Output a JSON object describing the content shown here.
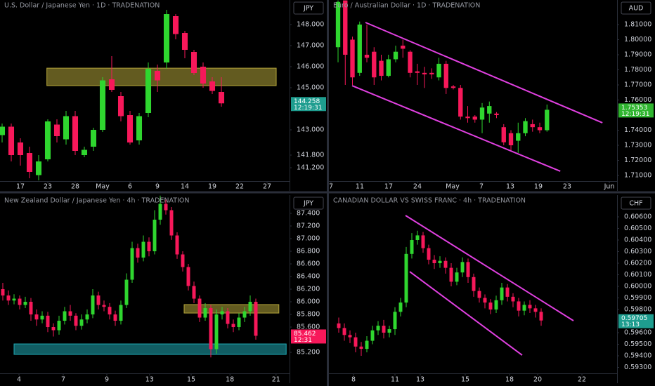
{
  "chart_data": [
    {
      "type": "candlestick",
      "title": "U.S. Dollar / Japanese Yen · 1D · TRADENATION",
      "currency": "JPY",
      "up_color": "#2fd62f",
      "down_color": "#f7185a",
      "xlim": [
        -0.23,
        31.46
      ],
      "ylim": [
        140.567,
        149.167
      ],
      "xticks": [
        {
          "value": 2,
          "label": "17"
        },
        {
          "value": 5,
          "label": "23"
        },
        {
          "value": 8,
          "label": "28"
        },
        {
          "value": 11,
          "label": "May"
        },
        {
          "value": 14,
          "label": "6"
        },
        {
          "value": 17,
          "label": "9"
        },
        {
          "value": 20,
          "label": "14"
        },
        {
          "value": 23,
          "label": "19"
        },
        {
          "value": 26,
          "label": "22"
        },
        {
          "value": 29,
          "label": "27"
        }
      ],
      "yticks": [
        {
          "value": 148,
          "label": "148.000"
        },
        {
          "value": 147,
          "label": "147.000"
        },
        {
          "value": 146,
          "label": "146.000"
        },
        {
          "value": 145,
          "label": "145.000"
        },
        {
          "value": 143,
          "label": "143.000"
        },
        {
          "value": 141.8,
          "label": "141.800"
        },
        {
          "value": 141.2,
          "label": "141.200"
        }
      ],
      "candles": {
        "open": [
          142.75,
          143.15,
          142.4,
          141.9,
          140.85,
          141.6,
          143.25,
          142.55,
          143.65,
          141.8,
          142.2,
          143.0,
          145.4,
          144.6,
          143.7,
          142.5,
          143.8,
          145.8,
          146.2,
          148.4,
          147.6,
          146.7,
          146.0,
          145.3,
          144.8
        ],
        "high": [
          143.3,
          143.3,
          142.6,
          142.2,
          141.8,
          143.5,
          143.5,
          143.9,
          143.9,
          142.2,
          143.1,
          145.5,
          146.5,
          144.8,
          143.9,
          143.8,
          146.2,
          146.1,
          148.7,
          148.5,
          147.7,
          146.8,
          146.2,
          145.5,
          145.5
        ],
        "low": [
          142.4,
          141.5,
          141.3,
          140.7,
          140.6,
          141.5,
          142.4,
          142.3,
          141.8,
          141.7,
          142.0,
          142.9,
          144.8,
          143.4,
          142.3,
          142.3,
          143.6,
          144.8,
          145.9,
          147.3,
          146.4,
          145.6,
          145.0,
          144.7,
          144.1
        ],
        "close": [
          143.15,
          141.8,
          141.8,
          141.0,
          141.5,
          143.4,
          142.7,
          143.65,
          142.0,
          142.05,
          143.0,
          145.35,
          144.9,
          143.65,
          142.4,
          143.65,
          145.9,
          145.35,
          148.5,
          147.55,
          146.8,
          145.7,
          145.2,
          144.85,
          144.258
        ]
      },
      "zones": [
        {
          "x": [
            4.9,
            30.0
          ],
          "y": [
            145.1,
            145.93
          ],
          "color": "#b5a63a"
        }
      ],
      "lines": [],
      "last_price": 144.258,
      "countdown": "12:19:31",
      "last_color": "#1e9d8f"
    },
    {
      "type": "candlestick",
      "title": "Euro / Australian Dollar · 1D · TRADENATION",
      "currency": "AUD",
      "up_color": "#2fd62f",
      "down_color": "#f7185a",
      "xlim": [
        -1.27,
        38.73
      ],
      "ylim": [
        1.70628,
        1.82628
      ],
      "xticks": [
        {
          "value": -0.98,
          "label": "7"
        },
        {
          "value": 3.02,
          "label": "11"
        },
        {
          "value": 7.02,
          "label": "17"
        },
        {
          "value": 11.02,
          "label": "24"
        },
        {
          "value": 15.9,
          "label": "May"
        },
        {
          "value": 19.9,
          "label": "7"
        },
        {
          "value": 23.9,
          "label": "13"
        },
        {
          "value": 27.8,
          "label": "19"
        },
        {
          "value": 31.8,
          "label": "23"
        },
        {
          "value": 37.66,
          "label": "Jun"
        }
      ],
      "yticks": [
        {
          "value": 1.81,
          "label": "1.81000"
        },
        {
          "value": 1.8,
          "label": "1.80000"
        },
        {
          "value": 1.79,
          "label": "1.79000"
        },
        {
          "value": 1.78,
          "label": "1.78000"
        },
        {
          "value": 1.77,
          "label": "1.77000"
        },
        {
          "value": 1.76,
          "label": "1.76000"
        },
        {
          "value": 1.74,
          "label": "1.74000"
        },
        {
          "value": 1.73,
          "label": "1.73000"
        },
        {
          "value": 1.72,
          "label": "1.72000"
        },
        {
          "value": 1.71,
          "label": "1.71000"
        }
      ],
      "candles": {
        "open": [
          1.795,
          1.826,
          1.8,
          1.778,
          1.79,
          1.792,
          1.786,
          1.776,
          1.787,
          1.796,
          1.792,
          1.779,
          1.778,
          1.778,
          1.775,
          1.784,
          1.769,
          1.768,
          1.749,
          1.749,
          1.747,
          1.751,
          1.751,
          1.742,
          1.738,
          1.733,
          1.738,
          1.744,
          1.742,
          1.74
        ],
        "high": [
          1.826,
          1.826,
          1.802,
          1.812,
          1.81,
          1.795,
          1.79,
          1.79,
          1.796,
          1.8,
          1.793,
          1.784,
          1.782,
          1.781,
          1.788,
          1.786,
          1.77,
          1.77,
          1.756,
          1.75,
          1.758,
          1.759,
          1.752,
          1.744,
          1.74,
          1.745,
          1.748,
          1.747,
          1.745,
          1.757
        ],
        "low": [
          1.785,
          1.77,
          1.77,
          1.776,
          1.785,
          1.77,
          1.773,
          1.775,
          1.785,
          1.788,
          1.775,
          1.77,
          1.768,
          1.774,
          1.773,
          1.764,
          1.767,
          1.747,
          1.745,
          1.745,
          1.738,
          1.745,
          1.748,
          1.73,
          1.726,
          1.725,
          1.736,
          1.739,
          1.738,
          1.739
        ],
        "close": [
          1.825,
          1.79,
          1.775,
          1.81,
          1.788,
          1.775,
          1.776,
          1.787,
          1.792,
          1.794,
          1.778,
          1.778,
          1.777,
          1.777,
          1.784,
          1.768,
          1.768,
          1.749,
          1.748,
          1.747,
          1.755,
          1.756,
          1.75,
          1.732,
          1.73,
          1.738,
          1.746,
          1.742,
          1.74,
          1.75353
        ]
      },
      "zones": [],
      "lines": [
        {
          "x": [
            3.8,
            36.7
          ],
          "y": [
            1.8114,
            1.7449
          ],
          "color": "#e040e0"
        },
        {
          "x": [
            1.95,
            30.85
          ],
          "y": [
            1.7695,
            1.7128
          ],
          "color": "#e040e0"
        }
      ],
      "last_price": 1.75353,
      "countdown": "12:19:31",
      "last_color": "#2fb52f"
    },
    {
      "type": "candlestick",
      "title": "New Zealand Dollar / Japanese Yen · 4h · TRADENATION",
      "currency": "JPY",
      "up_color": "#2fd62f",
      "down_color": "#f7185a",
      "xlim": [
        -0.5,
        51
      ],
      "ylim": [
        84.867,
        87.689
      ],
      "xticks": [
        {
          "value": 2.875,
          "label": "4"
        },
        {
          "value": 10.75,
          "label": "7"
        },
        {
          "value": 18.5,
          "label": "9"
        },
        {
          "value": 26.1,
          "label": "13"
        },
        {
          "value": 33.5,
          "label": "15"
        },
        {
          "value": 40.4,
          "label": "18"
        },
        {
          "value": 48.6,
          "label": "21"
        }
      ],
      "yticks": [
        {
          "value": 87.4,
          "label": "87.400"
        },
        {
          "value": 87.2,
          "label": "87.200"
        },
        {
          "value": 87,
          "label": "87.000"
        },
        {
          "value": 86.8,
          "label": "86.800"
        },
        {
          "value": 86.6,
          "label": "86.600"
        },
        {
          "value": 86.4,
          "label": "86.400"
        },
        {
          "value": 86.2,
          "label": "86.200"
        },
        {
          "value": 86,
          "label": "86.000"
        },
        {
          "value": 85.8,
          "label": "85.800"
        },
        {
          "value": 85.6,
          "label": "85.600"
        },
        {
          "value": 85.2,
          "label": "85.200"
        }
      ],
      "candles": {
        "open": [
          86.2,
          86.1,
          86.02,
          86.05,
          85.95,
          86.0,
          85.8,
          85.72,
          85.78,
          85.6,
          85.55,
          85.7,
          85.85,
          85.78,
          85.62,
          85.72,
          85.8,
          86.1,
          85.95,
          85.92,
          85.8,
          85.7,
          85.95,
          86.35,
          86.85,
          86.7,
          86.95,
          86.8,
          87.3,
          87.55,
          87.45,
          87.05,
          86.75,
          86.55,
          86.25,
          86.05,
          85.75,
          85.9,
          85.25,
          85.8,
          85.85,
          85.65,
          85.6,
          85.75,
          85.85,
          86.0
        ],
        "high": [
          86.3,
          86.18,
          86.12,
          86.1,
          86.08,
          86.06,
          85.88,
          85.85,
          85.84,
          85.66,
          85.78,
          85.92,
          85.95,
          85.82,
          85.8,
          85.88,
          86.2,
          86.16,
          86.02,
          85.98,
          85.86,
          86.02,
          86.45,
          86.95,
          86.92,
          87.05,
          87.02,
          87.45,
          87.68,
          87.62,
          87.5,
          87.1,
          86.8,
          86.6,
          86.32,
          86.1,
          85.98,
          85.95,
          85.88,
          85.92,
          85.9,
          85.72,
          85.82,
          85.92,
          86.1,
          86.05
        ],
        "low": [
          86.02,
          85.95,
          85.96,
          85.88,
          85.9,
          85.7,
          85.62,
          85.66,
          85.52,
          85.45,
          85.48,
          85.64,
          85.7,
          85.55,
          85.56,
          85.66,
          85.74,
          85.88,
          85.85,
          85.72,
          85.62,
          85.64,
          85.9,
          86.3,
          86.62,
          86.64,
          86.72,
          86.75,
          87.22,
          87.38,
          86.98,
          86.68,
          86.48,
          86.18,
          85.98,
          85.68,
          85.7,
          85.12,
          85.18,
          85.72,
          85.58,
          85.52,
          85.55,
          85.68,
          85.78,
          85.4
        ],
        "close": [
          86.1,
          86.02,
          86.05,
          85.95,
          86.0,
          85.8,
          85.72,
          85.78,
          85.6,
          85.55,
          85.7,
          85.85,
          85.78,
          85.62,
          85.72,
          85.8,
          86.1,
          85.95,
          85.92,
          85.8,
          85.7,
          85.95,
          86.35,
          86.85,
          86.7,
          86.95,
          86.8,
          87.3,
          87.55,
          87.45,
          87.05,
          86.75,
          86.55,
          86.25,
          86.05,
          85.75,
          85.9,
          85.25,
          85.8,
          85.85,
          85.65,
          85.6,
          85.75,
          85.85,
          86.0,
          85.462
        ]
      },
      "zones": [
        {
          "x": [
            32.25,
            49.1
          ],
          "y": [
            85.822,
            85.956
          ],
          "color": "#b5a63a"
        },
        {
          "x": [
            2.0,
            50.4
          ],
          "y": [
            85.167,
            85.333
          ],
          "color": "#1fa9b5"
        }
      ],
      "lines": [],
      "last_price": 85.462,
      "countdown": "12:31",
      "last_color": "#f7185a"
    },
    {
      "type": "candlestick",
      "title": "CANADIAN DOLLAR VS SWISS FRANC · 4h · TRADENATION",
      "currency": "CHF",
      "up_color": "#2fd62f",
      "down_color": "#f7185a",
      "xlim": [
        -1.75,
        49.5
      ],
      "ylim": [
        0.592485,
        0.607879
      ],
      "xticks": [
        {
          "value": 2.625,
          "label": "8"
        },
        {
          "value": 10,
          "label": "11"
        },
        {
          "value": 14.5,
          "label": "13"
        },
        {
          "value": 22.5,
          "label": "15"
        },
        {
          "value": 30.375,
          "label": "18"
        },
        {
          "value": 35.375,
          "label": "20"
        },
        {
          "value": 43.25,
          "label": "22"
        }
      ],
      "yticks": [
        {
          "value": 0.606,
          "label": "0.60600"
        },
        {
          "value": 0.605,
          "label": "0.60500"
        },
        {
          "value": 0.604,
          "label": "0.60400"
        },
        {
          "value": 0.603,
          "label": "0.60300"
        },
        {
          "value": 0.602,
          "label": "0.60200"
        },
        {
          "value": 0.601,
          "label": "0.60100"
        },
        {
          "value": 0.6,
          "label": "0.60000"
        },
        {
          "value": 0.599,
          "label": "0.59900"
        },
        {
          "value": 0.598,
          "label": "0.59800"
        },
        {
          "value": 0.596,
          "label": "0.59600"
        },
        {
          "value": 0.595,
          "label": "0.59500"
        },
        {
          "value": 0.594,
          "label": "0.59400"
        },
        {
          "value": 0.593,
          "label": "0.59300"
        }
      ],
      "candles": {
        "open": [
          0.5968,
          0.5964,
          0.5958,
          0.5956,
          0.5948,
          0.5946,
          0.5953,
          0.5962,
          0.5966,
          0.596,
          0.5963,
          0.5978,
          0.5986,
          0.6028,
          0.604,
          0.6044,
          0.6033,
          0.6023,
          0.602,
          0.6022,
          0.6016,
          0.6004,
          0.6012,
          0.6021,
          0.6008,
          0.5996,
          0.599,
          0.5986,
          0.598,
          0.5988,
          0.5999,
          0.5991,
          0.5987,
          0.5979,
          0.5984,
          0.5981,
          0.5978
        ],
        "high": [
          0.5973,
          0.5968,
          0.5962,
          0.596,
          0.5952,
          0.5957,
          0.5966,
          0.597,
          0.5971,
          0.5966,
          0.5982,
          0.599,
          0.6034,
          0.6046,
          0.6048,
          0.6047,
          0.6036,
          0.6027,
          0.6026,
          0.6025,
          0.602,
          0.6016,
          0.6025,
          0.6024,
          0.6011,
          0.5999,
          0.5993,
          0.5989,
          0.5992,
          0.6003,
          0.6002,
          0.5994,
          0.599,
          0.5987,
          0.5988,
          0.5984,
          0.5981
        ],
        "low": [
          0.596,
          0.5953,
          0.5951,
          0.5943,
          0.594,
          0.5943,
          0.595,
          0.5958,
          0.5955,
          0.5956,
          0.5958,
          0.5974,
          0.5982,
          0.6024,
          0.6036,
          0.6029,
          0.6019,
          0.6015,
          0.6016,
          0.6011,
          0.6,
          0.6001,
          0.6008,
          0.6003,
          0.5991,
          0.5986,
          0.5981,
          0.5976,
          0.5977,
          0.5984,
          0.5987,
          0.5982,
          0.5974,
          0.5975,
          0.5977,
          0.5973,
          0.5966
        ],
        "close": [
          0.5964,
          0.5958,
          0.5956,
          0.5948,
          0.5946,
          0.5953,
          0.5962,
          0.5966,
          0.596,
          0.5963,
          0.5978,
          0.5986,
          0.6028,
          0.604,
          0.6044,
          0.6033,
          0.6023,
          0.602,
          0.6022,
          0.6016,
          0.6004,
          0.6012,
          0.6021,
          0.6008,
          0.5996,
          0.599,
          0.5986,
          0.598,
          0.5988,
          0.5999,
          0.5991,
          0.5987,
          0.5979,
          0.5984,
          0.5981,
          0.5978,
          0.59705
        ]
      },
      "zones": [],
      "lines": [
        {
          "x": [
            11.875,
            41.75
          ],
          "y": [
            0.60612,
            0.59703
          ],
          "color": "#e040e0"
        },
        {
          "x": [
            12.625,
            32.625
          ],
          "y": [
            0.60127,
            0.59406
          ],
          "color": "#e040e0"
        }
      ],
      "last_price": 0.59705,
      "countdown": "13:13",
      "last_color": "#1e9d8f"
    }
  ]
}
